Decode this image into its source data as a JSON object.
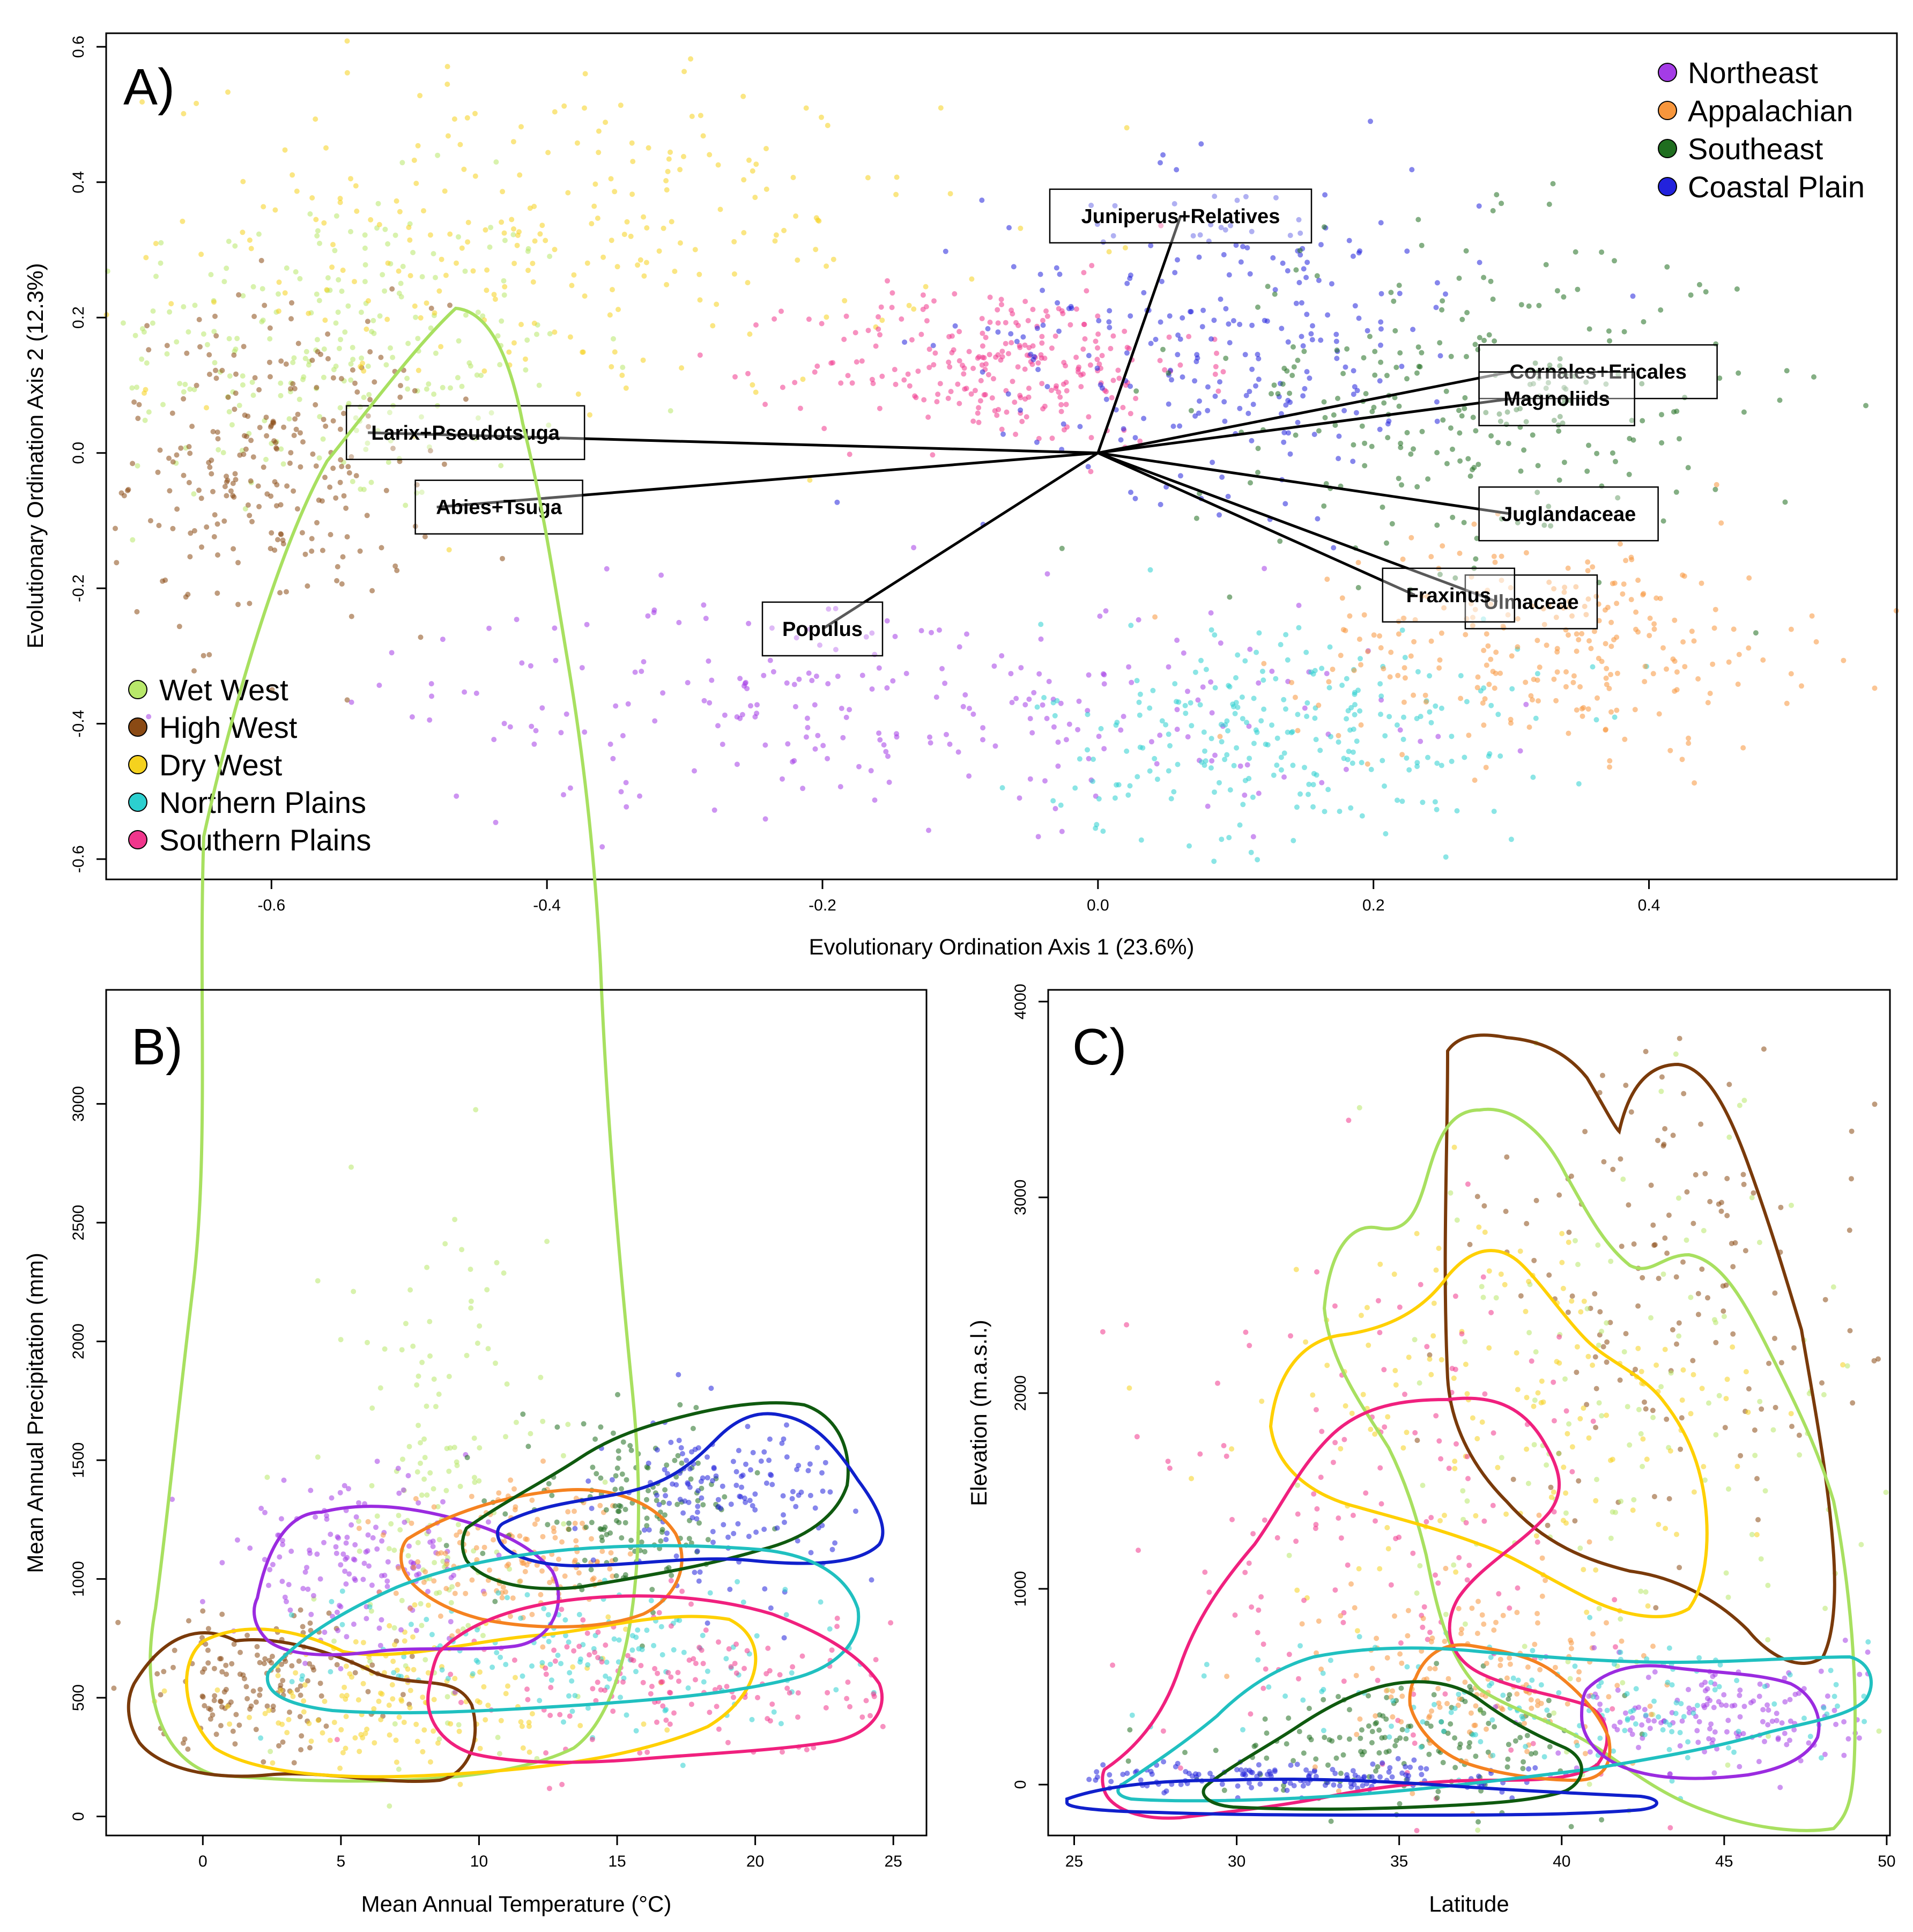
{
  "chart_data": [
    {
      "panel": "A)",
      "type": "scatter",
      "subtype": "ordination biplot",
      "xlabel": "Evolutionary Ordination Axis 1 (23.6%)",
      "ylabel": "Evolutionary Ordination Axis 2 (12.3%)",
      "xlim": [
        -0.72,
        0.58
      ],
      "ylim": [
        -0.63,
        0.62
      ],
      "xticks": [
        -0.6,
        -0.4,
        -0.2,
        0.0,
        0.2,
        0.4
      ],
      "xtick_labels": [
        "-0.6",
        "-0.4",
        "-0.2",
        "0.0",
        "0.2",
        "0.4"
      ],
      "yticks": [
        -0.6,
        -0.4,
        -0.2,
        0.0,
        0.2,
        0.4,
        0.6
      ],
      "ytick_labels": [
        "-0.6",
        "-0.4",
        "-0.2",
        "0.0",
        "0.2",
        "0.4",
        "0.6"
      ],
      "legend_top_right": [
        "Northeast",
        "Appalachian",
        "Southeast",
        "Coastal Plain"
      ],
      "legend_bottom_left": [
        "Wet West",
        "High West",
        "Dry West",
        "Northern Plains",
        "Southern Plains"
      ],
      "vectors": [
        {
          "label": "Juniperus+Relatives",
          "x": 0.06,
          "y": 0.35
        },
        {
          "label": "Cornales+Ericales",
          "x": 0.3,
          "y": 0.12
        },
        {
          "label": "Magnoliids",
          "x": 0.3,
          "y": 0.08
        },
        {
          "label": "Larix+Pseudotsuga",
          "x": -0.53,
          "y": 0.03
        },
        {
          "label": "Abies+Tsuga",
          "x": -0.48,
          "y": -0.08
        },
        {
          "label": "Juglandaceae",
          "x": 0.3,
          "y": -0.09
        },
        {
          "label": "Ulmaceae",
          "x": 0.29,
          "y": -0.22
        },
        {
          "label": "Fraxinus",
          "x": 0.23,
          "y": -0.21
        },
        {
          "label": "Populus",
          "x": -0.2,
          "y": -0.26
        }
      ],
      "clusters": [
        {
          "region": "Wet West",
          "cx": -0.56,
          "cy": 0.15,
          "sx": 0.09,
          "sy": 0.12
        },
        {
          "region": "High West",
          "cx": -0.6,
          "cy": -0.02,
          "sx": 0.06,
          "sy": 0.12
        },
        {
          "region": "Dry West",
          "cx": -0.4,
          "cy": 0.32,
          "sx": 0.14,
          "sy": 0.12
        },
        {
          "region": "Southern Plains",
          "cx": -0.07,
          "cy": 0.13,
          "sx": 0.07,
          "sy": 0.06
        },
        {
          "region": "Coastal Plain",
          "cx": 0.1,
          "cy": 0.18,
          "sx": 0.09,
          "sy": 0.12
        },
        {
          "region": "Southeast",
          "cx": 0.27,
          "cy": 0.08,
          "sx": 0.1,
          "sy": 0.12
        },
        {
          "region": "Northeast",
          "cx": -0.15,
          "cy": -0.37,
          "sx": 0.18,
          "sy": 0.08
        },
        {
          "region": "Northern Plains",
          "cx": 0.14,
          "cy": -0.42,
          "sx": 0.09,
          "sy": 0.09
        },
        {
          "region": "Appalachian",
          "cx": 0.33,
          "cy": -0.28,
          "sx": 0.09,
          "sy": 0.08
        }
      ]
    },
    {
      "panel": "B)",
      "type": "scatter",
      "subtype": "scatter with density contours",
      "xlabel": "Mean Annual Temperature (°C)",
      "ylabel": "Mean Annual Precipitation (mm)",
      "xlim": [
        -3.5,
        26.2
      ],
      "ylim": [
        -80,
        3480
      ],
      "xticks": [
        0,
        5,
        10,
        15,
        20,
        25
      ],
      "xtick_labels": [
        "0",
        "5",
        "10",
        "15",
        "20",
        "25"
      ],
      "yticks": [
        0,
        500,
        1000,
        1500,
        2000,
        2500,
        3000
      ],
      "ytick_labels": [
        "0",
        "500",
        "1000",
        "1500",
        "2000",
        "2500",
        "3000"
      ],
      "clusters": [
        {
          "region": "Wet West",
          "cx": 8.5,
          "cy": 1300,
          "sx": 2.0,
          "sy": 600
        },
        {
          "region": "High West",
          "cx": 2.0,
          "cy": 570,
          "sx": 2.5,
          "sy": 140
        },
        {
          "region": "Dry West",
          "cx": 7.0,
          "cy": 480,
          "sx": 4.0,
          "sy": 160
        },
        {
          "region": "Northeast",
          "cx": 5.5,
          "cy": 1070,
          "sx": 2.2,
          "sy": 160
        },
        {
          "region": "Appalachian",
          "cx": 11.5,
          "cy": 1080,
          "sx": 2.2,
          "sy": 140
        },
        {
          "region": "Southeast",
          "cx": 15.5,
          "cy": 1300,
          "sx": 2.0,
          "sy": 170
        },
        {
          "region": "Coastal Plain",
          "cx": 19.0,
          "cy": 1350,
          "sx": 2.0,
          "sy": 170
        },
        {
          "region": "Northern Plains",
          "cx": 14.0,
          "cy": 700,
          "sx": 5.0,
          "sy": 150
        },
        {
          "region": "Southern Plains",
          "cx": 17.5,
          "cy": 560,
          "sx": 3.5,
          "sy": 160
        }
      ]
    },
    {
      "panel": "C)",
      "type": "scatter",
      "subtype": "scatter with density contours",
      "xlabel": "Latitude",
      "ylabel": "Elevation (m.a.s.l.)",
      "xlim": [
        24.2,
        50.1
      ],
      "ylim": [
        -260,
        4060
      ],
      "xticks": [
        25,
        30,
        35,
        40,
        45,
        50
      ],
      "xtick_labels": [
        "25",
        "30",
        "35",
        "40",
        "45",
        "50"
      ],
      "yticks": [
        0,
        1000,
        2000,
        3000,
        4000
      ],
      "ytick_labels": [
        "0",
        "1000",
        "2000",
        "3000",
        "4000"
      ],
      "clusters": [
        {
          "region": "High West",
          "cx": 43.5,
          "cy": 2500,
          "sx": 3.0,
          "sy": 600
        },
        {
          "region": "Wet West",
          "cx": 42.0,
          "cy": 1600,
          "sx": 4.5,
          "sy": 900
        },
        {
          "region": "Dry West",
          "cx": 39.0,
          "cy": 1900,
          "sx": 4.0,
          "sy": 500
        },
        {
          "region": "Southern Plains",
          "cx": 34.0,
          "cy": 1400,
          "sx": 4.0,
          "sy": 650
        },
        {
          "region": "Southeast",
          "cx": 35.5,
          "cy": 230,
          "sx": 3.0,
          "sy": 150
        },
        {
          "region": "Coastal Plain",
          "cx": 31.5,
          "cy": 40,
          "sx": 3.5,
          "sy": 40
        },
        {
          "region": "Appalachian",
          "cx": 37.5,
          "cy": 550,
          "sx": 2.5,
          "sy": 250
        },
        {
          "region": "Northeast",
          "cx": 45.0,
          "cy": 350,
          "sx": 2.2,
          "sy": 150
        },
        {
          "region": "Northern Plains",
          "cx": 41.0,
          "cy": 400,
          "sx": 5.0,
          "sy": 200
        }
      ]
    }
  ],
  "region_colors": {
    "Northeast": "#a43ce6",
    "Appalachian": "#f7963c",
    "Southeast": "#1f6e1f",
    "Coastal Plain": "#2222dd",
    "Wet West": "#b8e86a",
    "High West": "#8a4a14",
    "Dry West": "#f5d21e",
    "Northern Plains": "#2ccfcf",
    "Southern Plains": "#f0368c"
  },
  "contour_colors": {
    "Wet West": "#a8e060",
    "High West": "#7a3a0a",
    "Dry West": "#ffd000",
    "Northeast": "#9b2be0",
    "Appalachian": "#f58220",
    "Southeast": "#0f5a0f",
    "Coastal Plain": "#1020cc",
    "Northern Plains": "#20c0c0",
    "Southern Plains": "#f0207e"
  }
}
